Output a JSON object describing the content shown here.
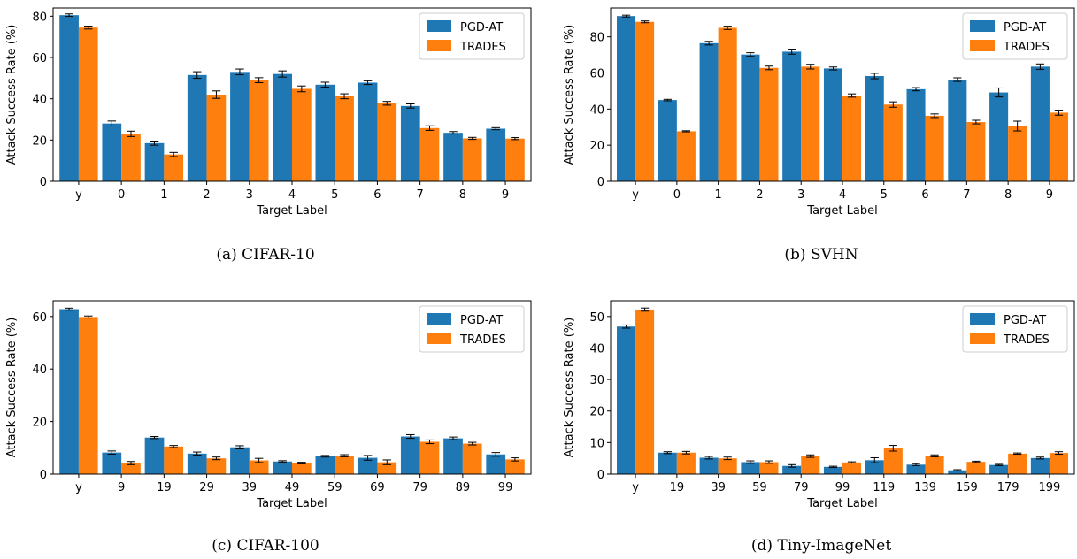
{
  "chart_data": [
    {
      "type": "bar",
      "caption": "(a) CIFAR-10",
      "xlabel": "Target Label",
      "ylabel": "Attack Success Rate (%)",
      "ylim": [
        0,
        84
      ],
      "yticks": [
        0,
        20,
        40,
        60,
        80
      ],
      "legend": "top-right",
      "categories": [
        "y",
        "0",
        "1",
        "2",
        "3",
        "4",
        "5",
        "6",
        "7",
        "8",
        "9"
      ],
      "series": [
        {
          "name": "PGD-AT",
          "color": "#1f77b4",
          "values": [
            80.5,
            28.0,
            18.5,
            51.5,
            53.0,
            52.0,
            46.8,
            47.8,
            36.5,
            23.5,
            25.5
          ],
          "errors": [
            0.6,
            1.2,
            1.0,
            1.6,
            1.4,
            1.5,
            1.2,
            0.9,
            1.0,
            0.6,
            0.5
          ]
        },
        {
          "name": "TRADES",
          "color": "#ff7f0e",
          "values": [
            74.5,
            23.0,
            13.0,
            42.0,
            49.0,
            44.8,
            41.2,
            37.8,
            25.8,
            20.8,
            20.7
          ],
          "errors": [
            0.7,
            1.3,
            1.0,
            1.8,
            1.2,
            1.4,
            1.2,
            0.9,
            1.1,
            0.5,
            0.5
          ]
        }
      ]
    },
    {
      "type": "bar",
      "caption": "(b) SVHN",
      "xlabel": "Target Label",
      "ylabel": "Attack Success Rate (%)",
      "ylim": [
        0,
        96
      ],
      "yticks": [
        0,
        20,
        40,
        60,
        80
      ],
      "legend": "top-right",
      "categories": [
        "y",
        "0",
        "1",
        "2",
        "3",
        "4",
        "5",
        "6",
        "7",
        "8",
        "9"
      ],
      "series": [
        {
          "name": "PGD-AT",
          "color": "#1f77b4",
          "values": [
            91.5,
            45.0,
            76.5,
            70.2,
            71.8,
            62.5,
            58.3,
            51.0,
            56.3,
            49.2,
            63.5
          ],
          "errors": [
            0.5,
            0.4,
            1.0,
            1.0,
            1.4,
            0.8,
            1.5,
            0.9,
            1.0,
            2.5,
            1.5
          ]
        },
        {
          "name": "TRADES",
          "color": "#ff7f0e",
          "values": [
            88.3,
            27.7,
            85.0,
            62.8,
            63.5,
            47.5,
            42.5,
            36.3,
            32.8,
            30.6,
            38.0
          ],
          "errors": [
            0.5,
            0.3,
            0.9,
            1.0,
            1.3,
            0.9,
            1.5,
            1.0,
            1.0,
            2.7,
            1.4
          ]
        }
      ]
    },
    {
      "type": "bar",
      "caption": "(c) CIFAR-100",
      "xlabel": "Target Label",
      "ylabel": "Attack Success Rate (%)",
      "ylim": [
        0,
        66
      ],
      "yticks": [
        0,
        20,
        40,
        60
      ],
      "legend": "top-right",
      "categories": [
        "y",
        "9",
        "19",
        "29",
        "39",
        "49",
        "59",
        "69",
        "79",
        "89",
        "99"
      ],
      "series": [
        {
          "name": "PGD-AT",
          "color": "#1f77b4",
          "values": [
            62.8,
            8.2,
            13.9,
            7.8,
            10.2,
            4.8,
            6.8,
            6.2,
            14.3,
            13.6,
            7.5
          ],
          "errors": [
            0.4,
            0.6,
            0.4,
            0.6,
            0.6,
            0.3,
            0.3,
            0.9,
            0.7,
            0.5,
            0.7
          ]
        },
        {
          "name": "TRADES",
          "color": "#ff7f0e",
          "values": [
            59.8,
            4.2,
            10.5,
            6.0,
            5.2,
            4.2,
            7.0,
            4.5,
            12.3,
            11.6,
            5.6
          ],
          "errors": [
            0.4,
            0.6,
            0.4,
            0.5,
            0.8,
            0.3,
            0.4,
            0.9,
            0.7,
            0.5,
            0.6
          ]
        }
      ]
    },
    {
      "type": "bar",
      "caption": "(d) Tiny-ImageNet",
      "xlabel": "Target Label",
      "ylabel": "Attack Success Rate (%)",
      "ylim": [
        0,
        55
      ],
      "yticks": [
        0,
        10,
        20,
        30,
        40,
        50
      ],
      "legend": "top-right",
      "categories": [
        "y",
        "19",
        "39",
        "59",
        "79",
        "99",
        "119",
        "139",
        "159",
        "179",
        "199"
      ],
      "series": [
        {
          "name": "PGD-AT",
          "color": "#1f77b4",
          "values": [
            46.8,
            6.8,
            5.2,
            3.8,
            2.6,
            2.3,
            4.4,
            3.0,
            1.2,
            2.9,
            5.1
          ],
          "errors": [
            0.5,
            0.3,
            0.4,
            0.4,
            0.4,
            0.2,
            0.8,
            0.3,
            0.2,
            0.2,
            0.3
          ]
        },
        {
          "name": "TRADES",
          "color": "#ff7f0e",
          "values": [
            52.2,
            6.8,
            5.0,
            3.8,
            5.7,
            3.7,
            8.2,
            5.8,
            3.9,
            6.5,
            6.7
          ],
          "errors": [
            0.5,
            0.4,
            0.4,
            0.4,
            0.4,
            0.2,
            0.9,
            0.3,
            0.2,
            0.2,
            0.4
          ]
        }
      ]
    }
  ]
}
